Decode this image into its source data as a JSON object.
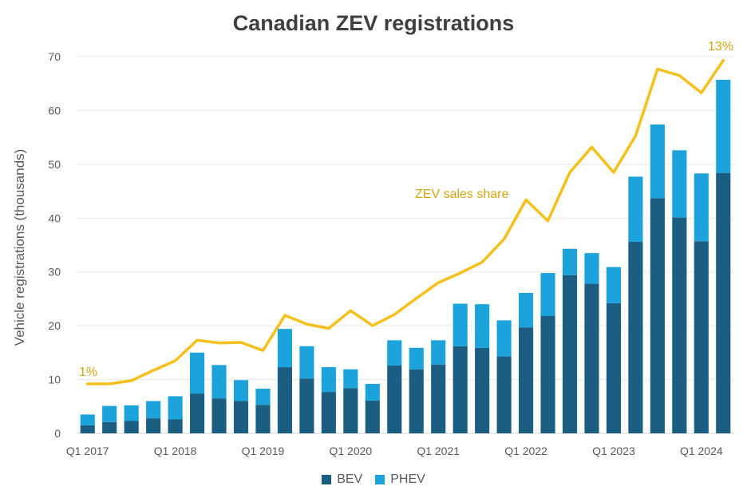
{
  "chart_data": {
    "type": "bar",
    "stacked": true,
    "title": "Canadian ZEV registrations",
    "ylabel": "Vehicle registrations (thousands)",
    "ylim": [
      0,
      70
    ],
    "yticks": [
      0,
      10,
      20,
      30,
      40,
      50,
      60,
      70
    ],
    "grid": true,
    "legend_position": "bottom",
    "categories": [
      "Q1 2017",
      "Q2 2017",
      "Q3 2017",
      "Q4 2017",
      "Q1 2018",
      "Q2 2018",
      "Q3 2018",
      "Q4 2018",
      "Q1 2019",
      "Q2 2019",
      "Q3 2019",
      "Q4 2019",
      "Q1 2020",
      "Q2 2020",
      "Q3 2020",
      "Q4 2020",
      "Q1 2021",
      "Q2 2021",
      "Q3 2021",
      "Q4 2021",
      "Q1 2022",
      "Q2 2022",
      "Q3 2022",
      "Q4 2022",
      "Q1 2023",
      "Q2 2023",
      "Q3 2023",
      "Q4 2023",
      "Q1 2024",
      "Q2 2024"
    ],
    "x_tick_labels": [
      "Q1 2017",
      "Q1 2018",
      "Q1 2019",
      "Q1 2020",
      "Q1 2021",
      "Q1 2022",
      "Q1 2023",
      "Q1 2024"
    ],
    "series": [
      {
        "name": "BEV",
        "color": "#1b5e82",
        "values": [
          1.5,
          2.1,
          2.3,
          2.8,
          2.6,
          7.4,
          6.5,
          6.0,
          5.3,
          12.3,
          10.2,
          7.7,
          8.4,
          6.1,
          12.6,
          11.9,
          12.8,
          16.2,
          15.9,
          14.3,
          19.7,
          21.8,
          29.4,
          27.8,
          24.2,
          35.6,
          43.7,
          40.1,
          35.7,
          48.4
        ]
      },
      {
        "name": "PHEV",
        "color": "#1ca3dc",
        "values": [
          2.0,
          3.0,
          2.9,
          3.2,
          4.3,
          7.6,
          6.2,
          3.9,
          3.0,
          7.1,
          6.0,
          4.6,
          3.5,
          3.1,
          4.7,
          4.0,
          4.5,
          7.9,
          8.1,
          6.7,
          6.4,
          8.0,
          4.9,
          5.7,
          6.7,
          12.1,
          13.7,
          12.5,
          12.6,
          17.3
        ]
      }
    ],
    "line_series": {
      "name": "ZEV sales share",
      "color": "#f5c01c",
      "label": "ZEV sales share",
      "start_label": "1%",
      "end_label": "13%",
      "values_on_bar_axis": [
        9.2,
        9.2,
        9.8,
        11.7,
        13.5,
        17.3,
        16.8,
        16.9,
        15.4,
        21.9,
        20.3,
        19.5,
        22.8,
        20.0,
        22.1,
        25.1,
        28.0,
        29.8,
        31.8,
        36.1,
        43.4,
        39.5,
        48.5,
        53.2,
        48.5,
        55.3,
        67.7,
        66.5,
        63.3,
        69.3
      ]
    }
  }
}
